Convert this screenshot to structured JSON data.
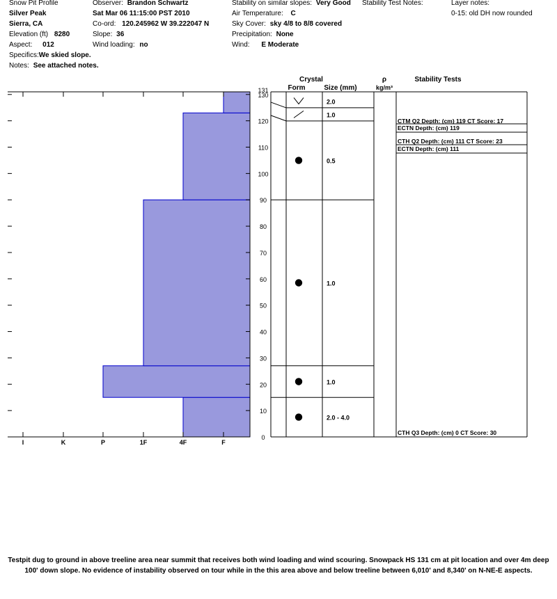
{
  "header": {
    "profile_title": "Snow Pit Profile",
    "location": "Silver Peak",
    "region": "Sierra, CA",
    "elevation_label": "Elevation (ft)",
    "elevation_value": "8280",
    "aspect_label": "Aspect:",
    "aspect_value": "012",
    "specifics_label": "Specifics:",
    "specifics_value": "We skied slope.",
    "notes_label": "Notes:",
    "notes_value": "See attached notes.",
    "observer_label": "Observer:",
    "observer_value": "Brandon Schwartz",
    "datetime": "Sat Mar 06 11:15:00 PST 2010",
    "coord_label": "Co-ord:",
    "coord_value": "120.245962 W 39.222047 N",
    "slope_label": "Slope:",
    "slope_value": "36",
    "wind_loading_label": "Wind loading:",
    "wind_loading_value": "no",
    "stability_label": "Stability on similar slopes:",
    "stability_value": "Very Good",
    "air_temp_label": "Air Temperature:",
    "air_temp_value": "C",
    "sky_label": "Sky Cover:",
    "sky_value": "sky 4/8 to 8/8 covered",
    "precip_label": "Precipitation:",
    "precip_value": "None",
    "wind_label": "Wind:",
    "wind_value": "E Moderate",
    "stability_notes_label": "Stability Test Notes:",
    "layer_notes_label": "Layer notes:",
    "layer_notes_value": "0-15: old DH now rounded"
  },
  "columns": {
    "crystal": "Crystal",
    "form": "Form",
    "size": "Size (mm)",
    "rho": "ρ",
    "rho_unit": "kg/m³",
    "stability_tests": "Stability Tests"
  },
  "chart_data": {
    "type": "bar",
    "title": "",
    "xlabel": "",
    "ylabel": "",
    "ylim": [
      0,
      131
    ],
    "hardness_scale": [
      "I",
      "K",
      "P",
      "1F",
      "4F",
      "F"
    ],
    "y_ticks": [
      0,
      10,
      20,
      30,
      40,
      50,
      60,
      70,
      80,
      90,
      100,
      110,
      120,
      130
    ],
    "top_label": "131",
    "hand_hardness_layers": [
      {
        "from": 0,
        "to": 15,
        "hardness": "4F"
      },
      {
        "from": 15,
        "to": 27,
        "hardness": "P"
      },
      {
        "from": 27,
        "to": 90,
        "hardness": "1F"
      },
      {
        "from": 90,
        "to": 123,
        "hardness": "4F"
      },
      {
        "from": 123,
        "to": 131,
        "hardness": "F"
      }
    ],
    "layer_boundaries": [
      15,
      27,
      90,
      121,
      126
    ],
    "crystal_layers": [
      {
        "from": 126,
        "to": 131,
        "form": "new-snow",
        "size": "2.0"
      },
      {
        "from": 121,
        "to": 126,
        "form": "decomposing",
        "size": "1.0"
      },
      {
        "from": 90,
        "to": 121,
        "form": "rounded",
        "size": "0.5"
      },
      {
        "from": 27,
        "to": 90,
        "form": "rounded",
        "size": "1.0"
      },
      {
        "from": 15,
        "to": 27,
        "form": "rounded",
        "size": "1.0"
      },
      {
        "from": 0,
        "to": 15,
        "form": "rounded",
        "size": "2.0 -   4.0"
      }
    ],
    "stability_tests": [
      {
        "text": "CTM Q2 Depth: (cm) 119 CT Score: 17"
      },
      {
        "text": "ECTN   Depth: (cm) 119"
      },
      {
        "text": "CTH Q2 Depth: (cm) 111 CT Score: 23"
      },
      {
        "text": "ECTN   Depth: (cm) 111"
      },
      {
        "text": "CTH Q3 Depth: (cm) 0 CT Score: 30"
      }
    ],
    "colors": {
      "bar": "#9999dd",
      "bar_edge": "#0000cc"
    }
  },
  "footer": {
    "line1": "Testpit dug to ground in above treeline area near summit that receives both wind loading and wind scouring. Snowpack HS 131 cm at pit location and over 4m deep",
    "line2": "100' down slope. No evidence of instability observed on tour while in the this area above and below treeline between 6,010' and 8,340' on N-NE-E aspects."
  }
}
